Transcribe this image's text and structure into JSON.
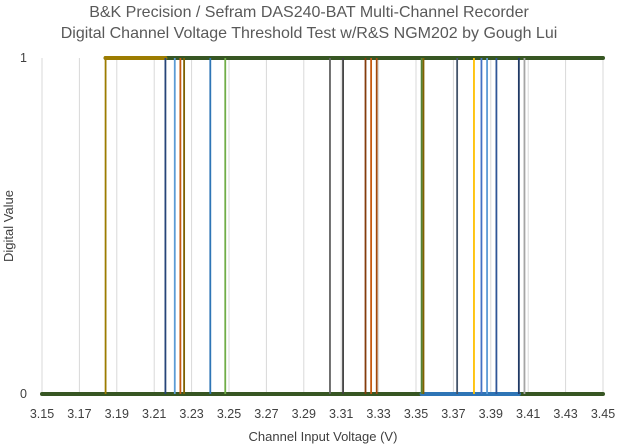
{
  "chart_data": {
    "type": "line",
    "title": "B&K Precision / Sefram DAS240-BAT Multi-Channel Recorder",
    "subtitle": "Digital Channel Voltage Threshold Test w/R&S NGM202 by Gough Lui",
    "xlabel": "Channel Input Voltage (V)",
    "ylabel": "Digital Value",
    "xlim": [
      3.15,
      3.45
    ],
    "ylim": [
      0,
      1
    ],
    "x_ticks": [
      "3.15",
      "3.17",
      "3.19",
      "3.21",
      "3.23",
      "3.25",
      "3.27",
      "3.29",
      "3.31",
      "3.33",
      "3.35",
      "3.37",
      "3.39",
      "3.41",
      "3.43",
      "3.45"
    ],
    "y_ticks": [
      "0",
      "1"
    ],
    "grid": "vertical",
    "legend": "none",
    "series": [
      {
        "x_threshold": 3.184,
        "color": "#9c7c00"
      },
      {
        "x_threshold": 3.216,
        "color": "#264478"
      },
      {
        "x_threshold": 3.221,
        "color": "#5b9bd5"
      },
      {
        "x_threshold": 3.224,
        "color": "#c55a11"
      },
      {
        "x_threshold": 3.226,
        "color": "#7f6000"
      },
      {
        "x_threshold": 3.24,
        "color": "#2e75b6"
      },
      {
        "x_threshold": 3.248,
        "color": "#70ad47"
      },
      {
        "x_threshold": 3.304,
        "color": "#636363"
      },
      {
        "x_threshold": 3.311,
        "color": "#404040"
      },
      {
        "x_threshold": 3.323,
        "color": "#843c0c"
      },
      {
        "x_threshold": 3.326,
        "color": "#c55a11"
      },
      {
        "x_threshold": 3.329,
        "color": "#9e480e"
      },
      {
        "x_threshold": 3.353,
        "color": "#548235"
      },
      {
        "x_threshold": 3.354,
        "color": "#806000"
      },
      {
        "x_threshold": 3.372,
        "color": "#44546a"
      },
      {
        "x_threshold": 3.381,
        "color": "#ffc000"
      },
      {
        "x_threshold": 3.385,
        "color": "#4472c4"
      },
      {
        "x_threshold": 3.388,
        "color": "#5b9bd5"
      },
      {
        "x_threshold": 3.393,
        "color": "#2f5597"
      },
      {
        "x_threshold": 3.405,
        "color": "#1f3864"
      },
      {
        "x_threshold": 3.408,
        "color": "#a5a5a5"
      }
    ],
    "baseline_color": "#375623",
    "band_segments": [
      {
        "level": 1,
        "from": 3.184,
        "to": 3.216,
        "color": "#9c7c00"
      },
      {
        "level": 0,
        "from": 3.353,
        "to": 3.405,
        "color": "#2e75b6"
      }
    ]
  }
}
